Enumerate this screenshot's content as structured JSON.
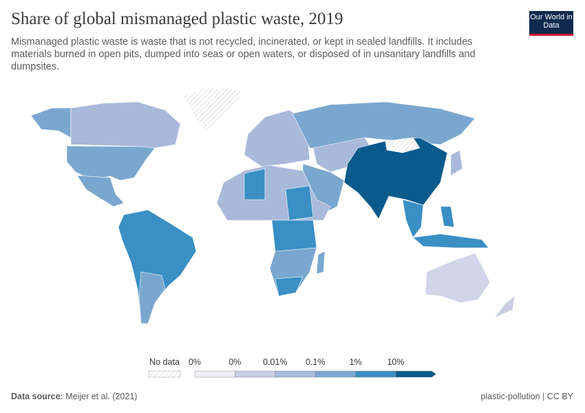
{
  "header": {
    "title": "Share of global mismanaged plastic waste, 2019",
    "subtitle": "Mismanaged plastic waste is waste that is not recycled, incinerated, or kept in sealed landfills. It includes materials burned in open pits, dumped into seas or open waters, or disposed of in unsanitary landfills and dumpsites.",
    "logo": "Our World in Data"
  },
  "legend": {
    "no_data": "No data",
    "labels": [
      "0%",
      "0%",
      "0.01%",
      "0.1%",
      "1%",
      "10%"
    ],
    "colors": [
      "#eeeef4",
      "#c9cde3",
      "#a9b9da",
      "#7aa7cf",
      "#3a8fc4",
      "#0a5a8c"
    ]
  },
  "footer": {
    "source_label": "Data source:",
    "source": "Meijer et al. (2021)",
    "slug": "plastic-pollution | CC BY"
  }
}
